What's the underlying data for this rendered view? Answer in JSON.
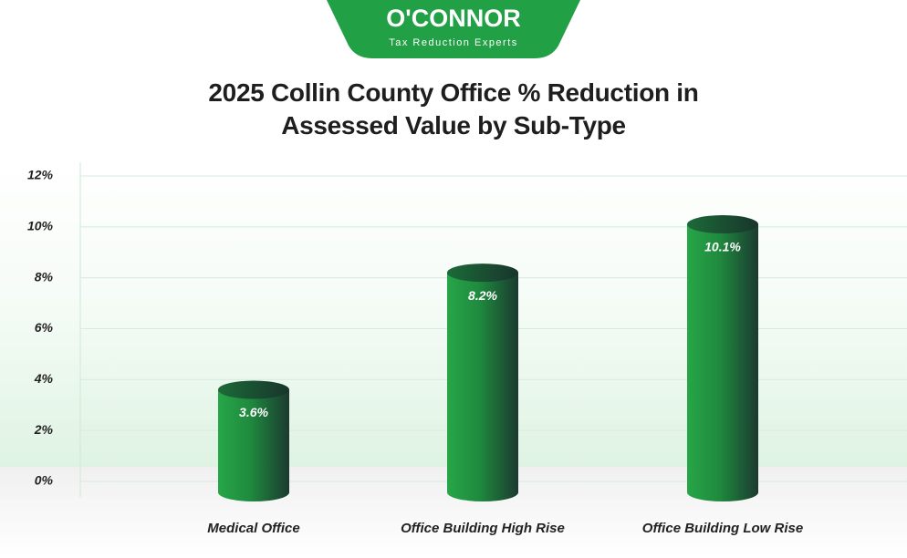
{
  "logo": {
    "name": "O'CONNOR",
    "tagline": "Tax Reduction Experts"
  },
  "chart_data": {
    "type": "bar",
    "title": "2025 Collin County Office % Reduction in Assessed Value by Sub-Type",
    "categories": [
      "Medical Office",
      "Office Building High Rise",
      "Office Building Low Rise"
    ],
    "values": [
      3.6,
      8.2,
      10.1
    ],
    "value_labels": [
      "3.6%",
      "8.2%",
      "10.1%"
    ],
    "color": "#22a046",
    "ylim": [
      0,
      12
    ],
    "yticks": [
      {
        "value": 0,
        "label": "0%"
      },
      {
        "value": 2,
        "label": "2%"
      },
      {
        "value": 4,
        "label": "4%"
      },
      {
        "value": 6,
        "label": "6%"
      },
      {
        "value": 8,
        "label": "8%"
      },
      {
        "value": 10,
        "label": "10%"
      },
      {
        "value": 12,
        "label": "12%"
      }
    ],
    "grid": true
  }
}
